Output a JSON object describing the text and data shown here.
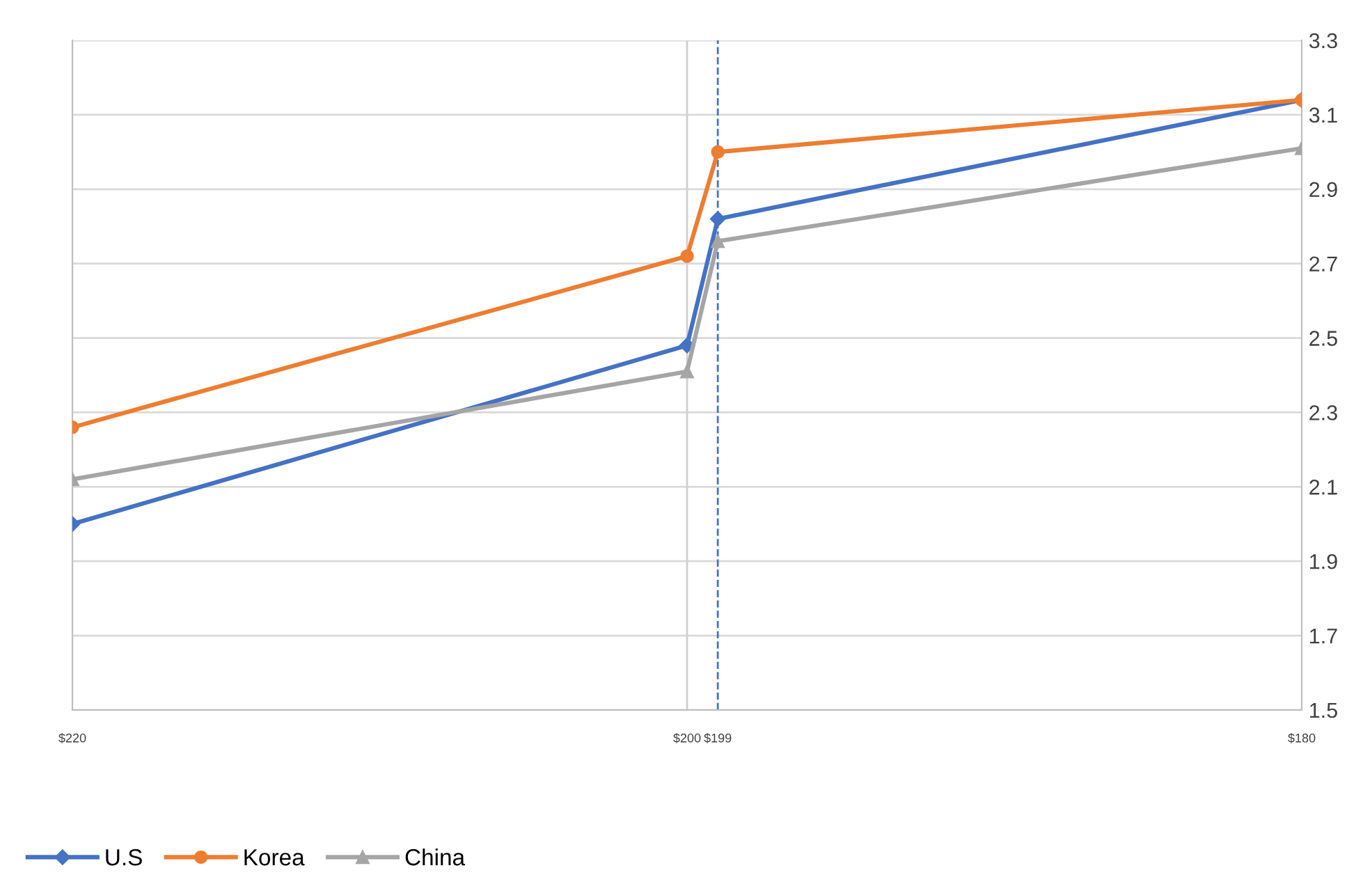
{
  "chart_data": {
    "type": "line",
    "x": [
      220,
      200,
      199,
      180
    ],
    "series": [
      {
        "name": "U.S",
        "color": "#4472c4",
        "marker": "diamond",
        "values": [
          2.0,
          2.48,
          2.82,
          3.14
        ]
      },
      {
        "name": "Korea",
        "color": "#ed7d31",
        "marker": "circle",
        "values": [
          2.26,
          2.72,
          3.0,
          3.14
        ]
      },
      {
        "name": "China",
        "color": "#a5a5a5",
        "marker": "triangle",
        "values": [
          2.12,
          2.41,
          2.76,
          3.01
        ]
      }
    ],
    "xlim": [
      220,
      180
    ],
    "xticks": [
      {
        "value": 220,
        "label": "$220"
      },
      {
        "value": 200,
        "label": "$200"
      },
      {
        "value": 199,
        "label": "$199"
      },
      {
        "value": 180,
        "label": "$180"
      }
    ],
    "ylim": [
      1.5,
      3.3
    ],
    "yticks": [
      1.5,
      1.7,
      1.9,
      2.1,
      2.3,
      2.5,
      2.7,
      2.9,
      3.1,
      3.3
    ],
    "ref_lines": [
      {
        "axis": "x",
        "value": 200,
        "color": "#d0d0d0",
        "line_style": "solid"
      },
      {
        "axis": "x",
        "value": 199,
        "color": "#4472c4",
        "line_style": "dashed"
      }
    ],
    "grid": "y",
    "legend": "bottom left",
    "line_style": "solid"
  }
}
